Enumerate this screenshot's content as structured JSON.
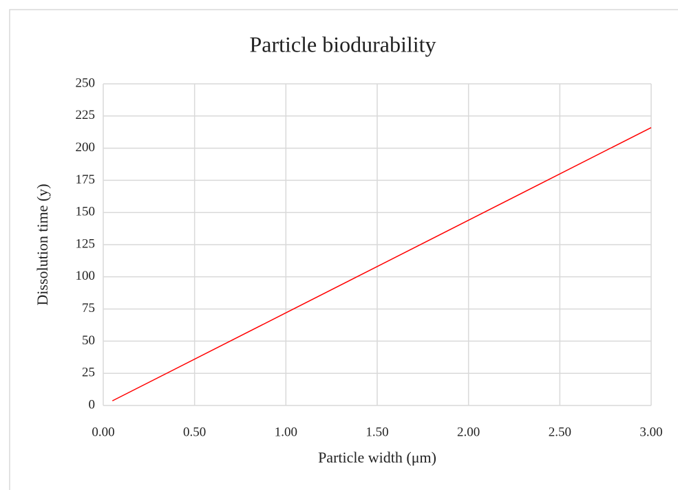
{
  "chart_data": {
    "type": "line",
    "title": "Particle biodurability",
    "xlabel": "Particle width (μm)",
    "ylabel": "Dissolution time (y)",
    "x": [
      0.05,
      1.0,
      2.0,
      3.0
    ],
    "values": [
      3.6,
      72,
      144,
      216
    ],
    "color": "#ff0000",
    "xlim": [
      0,
      3
    ],
    "xticks": [
      {
        "value": 0,
        "label": "0.00"
      },
      {
        "value": 0.5,
        "label": "0.50"
      },
      {
        "value": 1,
        "label": "1.00"
      },
      {
        "value": 1.5,
        "label": "1.50"
      },
      {
        "value": 2,
        "label": "2.00"
      },
      {
        "value": 2.5,
        "label": "2.50"
      },
      {
        "value": 3,
        "label": "3.00"
      }
    ],
    "ylim": [
      0,
      250
    ],
    "yticks": [
      0,
      25,
      50,
      75,
      100,
      125,
      150,
      175,
      200,
      225,
      250
    ],
    "grid": true
  }
}
